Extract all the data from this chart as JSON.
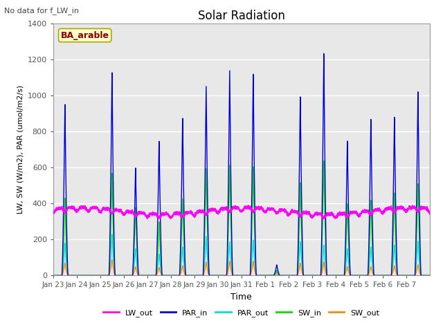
{
  "title": "Solar Radiation",
  "subtitle": "No data for f_LW_in",
  "xlabel": "Time",
  "ylabel": "LW, SW (W/m2), PAR (umol/m2/s)",
  "site_label": "BA_arable",
  "ylim": [
    0,
    1400
  ],
  "yticks": [
    0,
    200,
    400,
    600,
    800,
    1000,
    1200,
    1400
  ],
  "xtick_labels": [
    "Jan 23",
    "Jan 24",
    "Jan 25",
    "Jan 26",
    "Jan 27",
    "Jan 28",
    "Jan 29",
    "Jan 30",
    "Jan 31",
    "Feb 1",
    "Feb 2",
    "Feb 3",
    "Feb 4",
    "Feb 5",
    "Feb 6",
    "Feb 7"
  ],
  "colors": {
    "LW_out": "#ff00ff",
    "PAR_in": "#0000dd",
    "PAR_out": "#00dddd",
    "SW_in": "#00dd00",
    "SW_out": "#ff8800"
  },
  "plot_bg_color": "#e8e8e8",
  "grid_color": "#ffffff",
  "par_peaks": [
    950,
    0,
    1130,
    600,
    750,
    880,
    1060,
    1150,
    1130,
    60,
    1000,
    1240,
    750,
    870,
    880,
    1020
  ],
  "sw_peaks": [
    430,
    0,
    570,
    380,
    300,
    430,
    600,
    620,
    610,
    30,
    520,
    640,
    400,
    420,
    460,
    510
  ],
  "swo_peaks": [
    70,
    0,
    90,
    50,
    45,
    55,
    75,
    80,
    80,
    10,
    70,
    75,
    50,
    50,
    55,
    60
  ],
  "paro_peaks": [
    180,
    0,
    230,
    150,
    120,
    160,
    220,
    190,
    200,
    20,
    190,
    170,
    150,
    160,
    170,
    190
  ]
}
